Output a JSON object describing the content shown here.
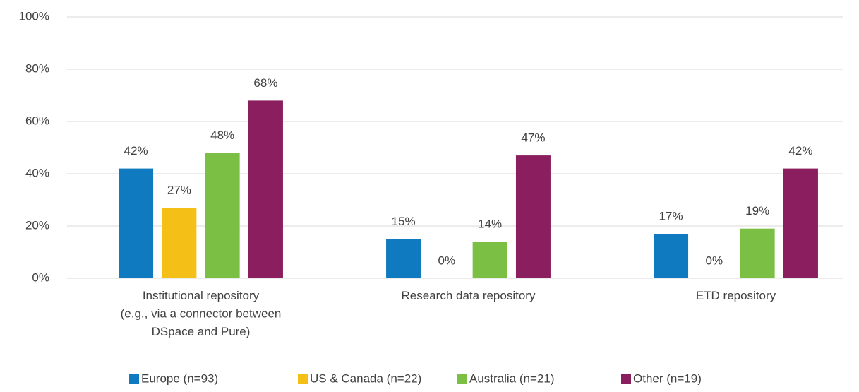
{
  "chart_data": {
    "type": "bar",
    "categories": [
      "Institutional repository\n(e.g., via a connector between\nDSpace and Pure)",
      "Research data repository",
      "ETD repository"
    ],
    "series": [
      {
        "name": "Europe (n=93)",
        "color": "#0f7abf",
        "values": [
          42,
          15,
          17
        ],
        "value_labels": [
          "42%",
          "15%",
          "17%"
        ]
      },
      {
        "name": "US & Canada (n=22)",
        "color": "#f4bf17",
        "values": [
          27,
          0,
          0
        ],
        "value_labels": [
          "27%",
          "0%",
          "0%"
        ]
      },
      {
        "name": "Australia (n=21)",
        "color": "#7bbf45",
        "values": [
          48,
          14,
          19
        ],
        "value_labels": [
          "48%",
          "14%",
          "19%"
        ]
      },
      {
        "name": "Other (n=19)",
        "color": "#8b1e5f",
        "values": [
          68,
          47,
          42
        ],
        "value_labels": [
          "68%",
          "47%",
          "42%"
        ]
      }
    ],
    "ylim": [
      0,
      100
    ],
    "yticks": [
      {
        "value": 0,
        "label": "0%"
      },
      {
        "value": 20,
        "label": "20%"
      },
      {
        "value": 40,
        "label": "40%"
      },
      {
        "value": 60,
        "label": "60%"
      },
      {
        "value": 80,
        "label": "80%"
      },
      {
        "value": 100,
        "label": "100%"
      }
    ],
    "grid": true,
    "legend": "bottom"
  }
}
